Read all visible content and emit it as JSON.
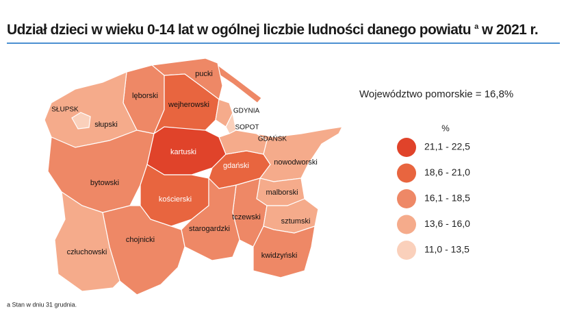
{
  "header": {
    "title": "Udział dzieci w wieku 0-14 lat w ogólnej liczbie ludności danego powiatu",
    "title_note": "a",
    "title_end": "w 2021 r."
  },
  "summary": "Województwo pomorskie = 16,8%",
  "legend": {
    "title": "%",
    "items": [
      {
        "label": "21,1 - 22,5",
        "color": "#e0432a"
      },
      {
        "label": "18,6 - 21,0",
        "color": "#e8653f"
      },
      {
        "label": "16,1 - 18,5",
        "color": "#ee8866"
      },
      {
        "label": "13,6 - 16,0",
        "color": "#f5ab8b"
      },
      {
        "label": "11,0 - 13,5",
        "color": "#fad0bb"
      }
    ]
  },
  "regions": [
    {
      "name": "pucki",
      "color": "#ee8866"
    },
    {
      "name": "lęborski",
      "color": "#ee8866"
    },
    {
      "name": "wejherowski",
      "color": "#e8653f"
    },
    {
      "name": "słupski",
      "color": "#f5ab8b"
    },
    {
      "name": "SŁUPSK",
      "color": "#fad0bb"
    },
    {
      "name": "bytowski",
      "color": "#ee8866"
    },
    {
      "name": "kartuski",
      "color": "#e0432a"
    },
    {
      "name": "kościerski",
      "color": "#e8653f"
    },
    {
      "name": "gdański",
      "color": "#e8653f"
    },
    {
      "name": "GDYNIA",
      "color": "#f5ab8b"
    },
    {
      "name": "SOPOT",
      "color": "#fad0bb"
    },
    {
      "name": "GDAŃSK",
      "color": "#f5ab8b"
    },
    {
      "name": "nowodworski",
      "color": "#f5ab8b"
    },
    {
      "name": "malborski",
      "color": "#f5ab8b"
    },
    {
      "name": "tczewski",
      "color": "#ee8866"
    },
    {
      "name": "starogardzki",
      "color": "#ee8866"
    },
    {
      "name": "sztumski",
      "color": "#f5ab8b"
    },
    {
      "name": "kwidzyński",
      "color": "#ee8866"
    },
    {
      "name": "chojnicki",
      "color": "#ee8866"
    },
    {
      "name": "człuchowski",
      "color": "#f5ab8b"
    }
  ],
  "footnote": "a Stan w dniu 31 grudnia."
}
